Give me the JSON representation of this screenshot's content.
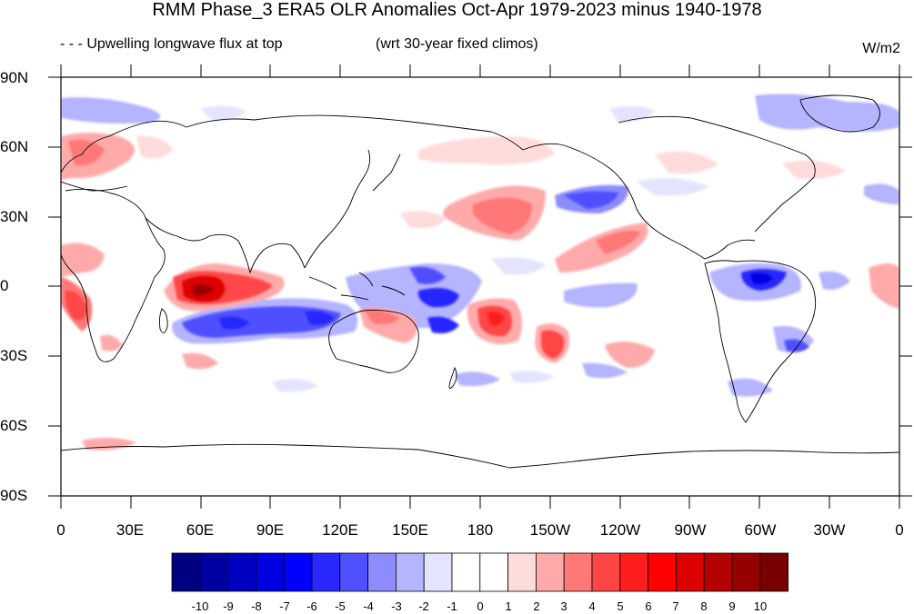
{
  "title": "RMM Phase_3 ERA5 OLR Anomalies Oct-Apr 1979-2023 minus 1940-1978",
  "left_string": "- - - Upwelling longwave flux at top",
  "center_string": "(wrt 30-year fixed climos)",
  "units": "W/m2",
  "lat_labels": [
    "90N",
    "60N",
    "30N",
    "0",
    "30S",
    "60S",
    "90S"
  ],
  "lon_labels": [
    "0",
    "30E",
    "60E",
    "90E",
    "120E",
    "150E",
    "180",
    "150W",
    "120W",
    "90W",
    "60W",
    "30W",
    "0"
  ],
  "colorbar": {
    "labels": [
      "-10",
      "-9",
      "-8",
      "-7",
      "-6",
      "-5",
      "-4",
      "-3",
      "-2",
      "-1",
      "0",
      "1",
      "2",
      "3",
      "4",
      "5",
      "6",
      "7",
      "8",
      "9",
      "10"
    ],
    "colors": [
      "#000080",
      "#0000a0",
      "#0000c0",
      "#0000e0",
      "#0000ff",
      "#2828ff",
      "#5050ff",
      "#8c8cff",
      "#b4b4ff",
      "#e4e4ff",
      "#ffffff",
      "#ffffff",
      "#ffdcdc",
      "#ffaaaa",
      "#ff7878",
      "#ff4646",
      "#ff1e1e",
      "#ff0000",
      "#dc0000",
      "#b40000",
      "#960000",
      "#780000"
    ]
  },
  "colors": {
    "accent_negative": "#0000e0",
    "accent_positive": "#e00000",
    "coastline": "#000000"
  }
}
